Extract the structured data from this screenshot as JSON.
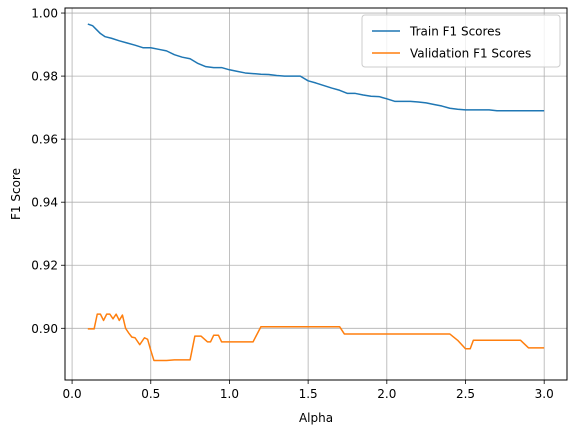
{
  "chart_data": {
    "type": "line",
    "title": "",
    "xlabel": "Alpha",
    "ylabel": "F1 Score",
    "xlim": [
      -0.045,
      3.145
    ],
    "ylim": [
      0.8836,
      1.0016
    ],
    "xticks": [
      0.0,
      0.5,
      1.0,
      1.5,
      2.0,
      2.5,
      3.0
    ],
    "xtick_labels": [
      "0.0",
      "0.5",
      "1.0",
      "1.5",
      "2.0",
      "2.5",
      "3.0"
    ],
    "yticks": [
      0.9,
      0.92,
      0.94,
      0.96,
      0.98,
      1.0
    ],
    "ytick_labels": [
      "0.90",
      "0.92",
      "0.94",
      "0.96",
      "0.98",
      "1.00"
    ],
    "grid": true,
    "legend_position": "top-right",
    "series": [
      {
        "name": "Train F1 Scores",
        "color": "#1f77b4",
        "x": [
          0.1,
          0.13,
          0.15,
          0.18,
          0.21,
          0.25,
          0.3,
          0.35,
          0.4,
          0.45,
          0.5,
          0.55,
          0.6,
          0.65,
          0.7,
          0.75,
          0.8,
          0.85,
          0.9,
          0.95,
          1.0,
          1.05,
          1.1,
          1.15,
          1.2,
          1.25,
          1.3,
          1.35,
          1.4,
          1.45,
          1.5,
          1.55,
          1.6,
          1.65,
          1.7,
          1.75,
          1.8,
          1.85,
          1.9,
          1.95,
          2.0,
          2.05,
          2.1,
          2.15,
          2.2,
          2.25,
          2.3,
          2.35,
          2.4,
          2.45,
          2.5,
          2.55,
          2.6,
          2.65,
          2.7,
          2.75,
          2.8,
          2.85,
          2.9,
          2.95,
          3.0
        ],
        "y": [
          0.9965,
          0.996,
          0.995,
          0.9935,
          0.9925,
          0.992,
          0.9912,
          0.9905,
          0.9898,
          0.989,
          0.989,
          0.9885,
          0.988,
          0.9868,
          0.986,
          0.9855,
          0.984,
          0.983,
          0.9827,
          0.9827,
          0.982,
          0.9815,
          0.981,
          0.9808,
          0.9806,
          0.9805,
          0.9802,
          0.98,
          0.98,
          0.98,
          0.9785,
          0.9778,
          0.977,
          0.9762,
          0.9755,
          0.9745,
          0.9745,
          0.974,
          0.9736,
          0.9735,
          0.9728,
          0.972,
          0.972,
          0.972,
          0.9718,
          0.9715,
          0.971,
          0.9705,
          0.9698,
          0.9695,
          0.9693,
          0.9693,
          0.9693,
          0.9693,
          0.969,
          0.969,
          0.969,
          0.969,
          0.969,
          0.969,
          0.969
        ]
      },
      {
        "name": "Validation F1 Scores",
        "color": "#ff7f0e",
        "x": [
          0.1,
          0.14,
          0.16,
          0.18,
          0.2,
          0.22,
          0.24,
          0.26,
          0.28,
          0.3,
          0.32,
          0.34,
          0.36,
          0.38,
          0.4,
          0.43,
          0.46,
          0.48,
          0.5,
          0.52,
          0.55,
          0.6,
          0.65,
          0.7,
          0.75,
          0.78,
          0.82,
          0.86,
          0.88,
          0.9,
          0.93,
          0.95,
          1.0,
          1.05,
          1.1,
          1.15,
          1.2,
          1.3,
          1.4,
          1.5,
          1.6,
          1.65,
          1.7,
          1.73,
          1.8,
          1.9,
          2.0,
          2.1,
          2.2,
          2.3,
          2.4,
          2.45,
          2.5,
          2.53,
          2.55,
          2.6,
          2.7,
          2.8,
          2.85,
          2.9,
          2.95,
          3.0
        ],
        "y": [
          0.8998,
          0.8998,
          0.9045,
          0.9045,
          0.9025,
          0.9045,
          0.9045,
          0.903,
          0.9045,
          0.9025,
          0.9042,
          0.9,
          0.8985,
          0.8972,
          0.897,
          0.8948,
          0.897,
          0.8965,
          0.893,
          0.8898,
          0.8898,
          0.8898,
          0.89,
          0.89,
          0.89,
          0.8975,
          0.8975,
          0.8957,
          0.8957,
          0.8978,
          0.8978,
          0.8957,
          0.8957,
          0.8957,
          0.8957,
          0.8957,
          0.9005,
          0.9005,
          0.9005,
          0.9005,
          0.9005,
          0.9005,
          0.9005,
          0.8982,
          0.8982,
          0.8982,
          0.8982,
          0.8982,
          0.8982,
          0.8982,
          0.8982,
          0.8962,
          0.8935,
          0.8935,
          0.8962,
          0.8962,
          0.8962,
          0.8962,
          0.8962,
          0.8938,
          0.8938,
          0.8938
        ]
      }
    ]
  }
}
